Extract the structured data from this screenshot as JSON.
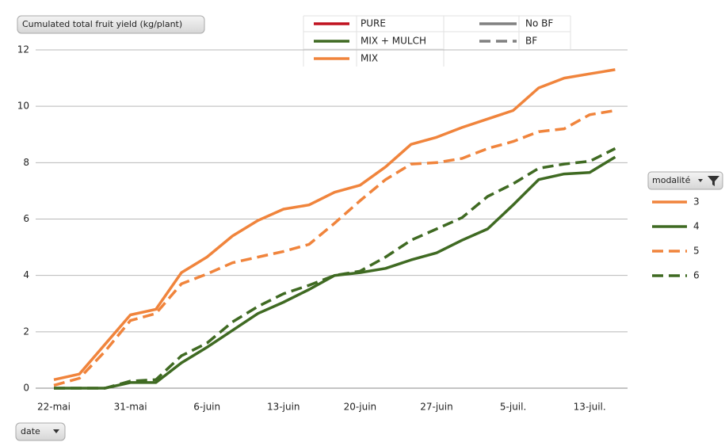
{
  "chart_data": {
    "type": "line",
    "title": "Cumulated total fruit yield (kg/plant)",
    "x_field": "date",
    "legend_title": "modalité",
    "categories": [
      "22-mai",
      null,
      null,
      "31-mai",
      null,
      null,
      "6-juin",
      null,
      null,
      "13-juin",
      null,
      null,
      "20-juin",
      null,
      null,
      "27-juin",
      null,
      null,
      "5-juil.",
      null,
      null,
      "13-juil.",
      null
    ],
    "series": [
      {
        "name": "3",
        "color": "#f0843c",
        "dashed": false,
        "values": [
          0.3,
          0.5,
          1.55,
          2.6,
          2.8,
          4.1,
          4.65,
          5.4,
          5.95,
          6.35,
          6.5,
          6.95,
          7.2,
          7.85,
          8.65,
          8.9,
          9.25,
          9.55,
          9.85,
          10.65,
          11.0,
          11.15,
          11.3
        ]
      },
      {
        "name": "4",
        "color": "#3f6a22",
        "dashed": false,
        "values": [
          0,
          0,
          0,
          0.2,
          0.2,
          0.9,
          1.45,
          2.05,
          2.65,
          3.05,
          3.5,
          4.0,
          4.1,
          4.25,
          4.55,
          4.8,
          5.25,
          5.65,
          6.5,
          7.4,
          7.6,
          7.65,
          8.2
        ]
      },
      {
        "name": "5",
        "color": "#f0843c",
        "dashed": true,
        "values": [
          0.1,
          0.35,
          1.3,
          2.4,
          2.65,
          3.7,
          4.05,
          4.45,
          4.65,
          4.85,
          5.1,
          5.85,
          6.65,
          7.4,
          7.95,
          8.0,
          8.15,
          8.5,
          8.75,
          9.1,
          9.2,
          9.7,
          9.85
        ]
      },
      {
        "name": "6",
        "color": "#3f6a22",
        "dashed": true,
        "values": [
          0,
          0,
          0,
          0.25,
          0.3,
          1.15,
          1.6,
          2.35,
          2.9,
          3.35,
          3.65,
          4.0,
          4.15,
          4.65,
          5.25,
          5.65,
          6.05,
          6.8,
          7.25,
          7.8,
          7.95,
          8.05,
          8.5
        ]
      }
    ],
    "color_key": [
      {
        "label": "PURE",
        "color": "#c0111f"
      },
      {
        "label": "MIX + MULCH",
        "color": "#3f6a22"
      },
      {
        "label": "MIX",
        "color": "#f0843c"
      }
    ],
    "style_key": [
      {
        "label": "No BF",
        "dashed": false
      },
      {
        "label": "BF",
        "dashed": true
      }
    ],
    "ylim": [
      0,
      12
    ],
    "yticks": [
      0,
      2,
      4,
      6,
      8,
      10,
      12
    ],
    "grid": true
  }
}
